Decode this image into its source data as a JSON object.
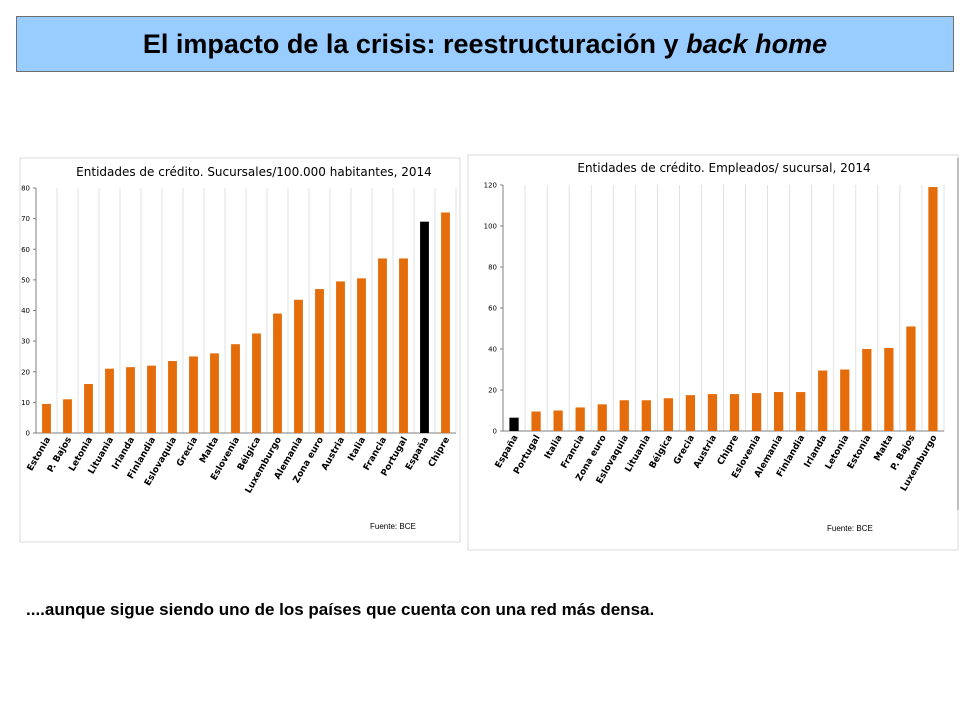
{
  "slide": {
    "title_main": "El impacto de la crisis: reestructuración y ",
    "title_italic": "back home",
    "caption": "....aunque sigue siendo uno de los países que cuenta con una red más densa."
  },
  "colors": {
    "bar": "#e46c0a",
    "highlight": "#000000",
    "banner": "#99ccff"
  },
  "chart_data": [
    {
      "type": "bar",
      "title": "Entidades de crédito. Sucursales/100.000 habitantes, 2014",
      "source": "Fuente: BCE",
      "categories": [
        "Estonia",
        "P. Bajos",
        "Letonia",
        "Lituania",
        "Irlanda",
        "Finlandia",
        "Eslovaquia",
        "Grecia",
        "Malta",
        "Eslovenia",
        "Bélgica",
        "Luxemburgo",
        "Alemania",
        "Zona euro",
        "Austria",
        "Italia",
        "Francia",
        "Portugal",
        "España",
        "Chipre"
      ],
      "values": [
        9.5,
        11,
        16,
        21,
        21.5,
        22,
        23.5,
        25,
        26,
        29,
        32.5,
        39,
        43.5,
        47,
        49.5,
        50.5,
        57,
        57,
        69,
        72
      ],
      "highlight": "España",
      "ylim": [
        0,
        80
      ],
      "yticks": [
        "0",
        "10",
        "20",
        "30",
        "40",
        "50",
        "60",
        "70",
        "80"
      ],
      "grid": true,
      "xlabel": "",
      "ylabel": ""
    },
    {
      "type": "bar",
      "title": "Entidades de crédito. Empleados/ sucursal, 2014",
      "source": "Fuente: BCE",
      "categories": [
        "España",
        "Portugal",
        "Italia",
        "Francia",
        "Zona euro",
        "Eslovaquia",
        "Lituania",
        "Bélgica",
        "Grecia",
        "Austria",
        "Chipre",
        "Eslovenia",
        "Alemania",
        "Finlandia",
        "Irlanda",
        "Letonia",
        "Estonia",
        "Malta",
        "P. Bajos",
        "Luxemburgo"
      ],
      "values": [
        6.5,
        9.5,
        10,
        11.5,
        13,
        15,
        15,
        16,
        17.5,
        18,
        18,
        18.5,
        19,
        19,
        29.5,
        30,
        40,
        40.5,
        51,
        119
      ],
      "highlight": "España",
      "ylim": [
        0,
        120
      ],
      "yticks": [
        "0",
        "20",
        "40",
        "60",
        "80",
        "100",
        "120"
      ],
      "grid": true,
      "xlabel": "",
      "ylabel": ""
    }
  ]
}
